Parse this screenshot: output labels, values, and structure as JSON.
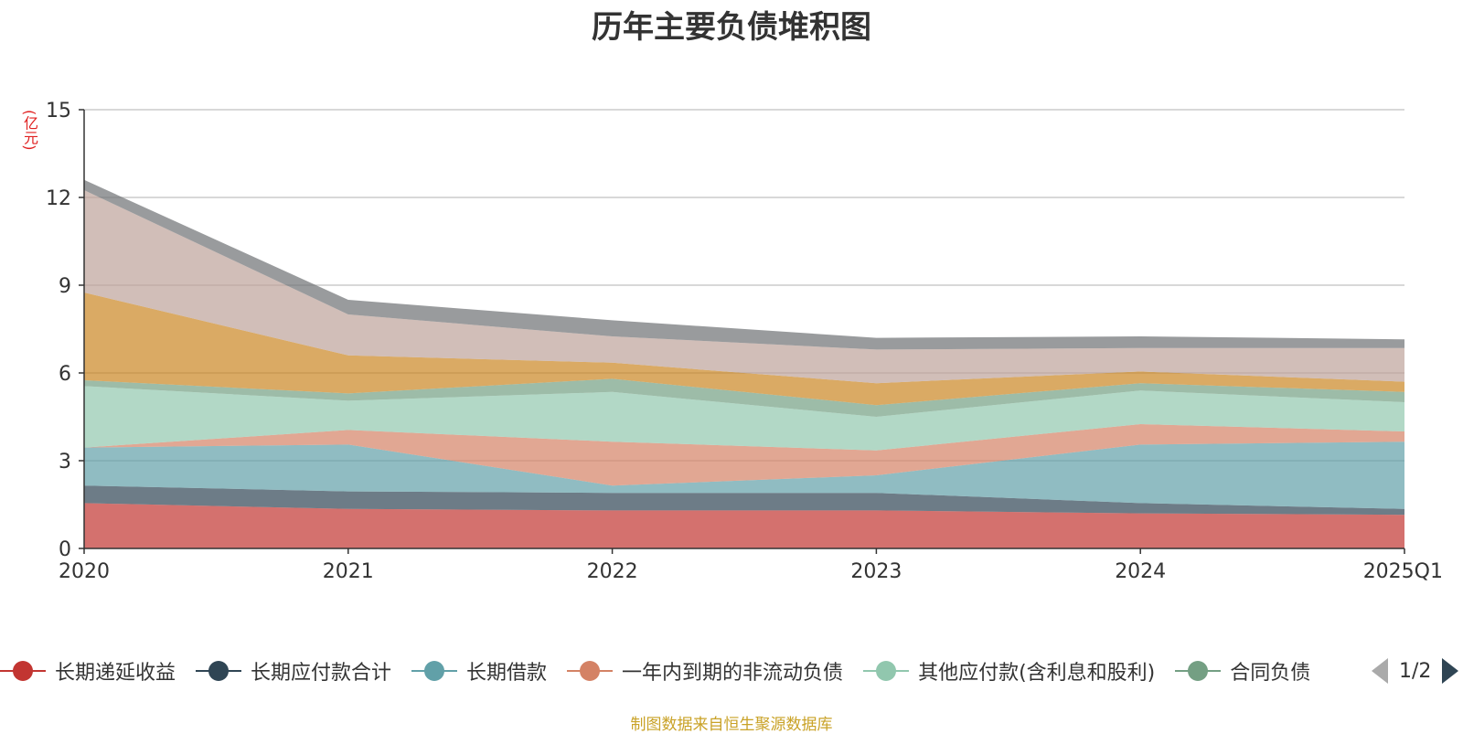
{
  "chart_data": {
    "type": "area",
    "title": "历年主要负债堆积图",
    "unit_label": "(亿元)",
    "categories": [
      "2020",
      "2021",
      "2022",
      "2023",
      "2024",
      "2025Q1"
    ],
    "ylim": [
      0,
      15
    ],
    "yticks": [
      0,
      3,
      6,
      9,
      12,
      15
    ],
    "stacked": true,
    "grid": true,
    "legend_position": "bottom",
    "legend_page": "1/2",
    "series": [
      {
        "name": "长期递延收益",
        "color": "#c23531",
        "values": [
          1.55,
          1.35,
          1.3,
          1.3,
          1.2,
          1.15
        ]
      },
      {
        "name": "长期应付款合计",
        "color": "#2f4554",
        "values": [
          0.6,
          0.6,
          0.6,
          0.6,
          0.35,
          0.2
        ]
      },
      {
        "name": "长期借款",
        "color": "#61a0a8",
        "values": [
          1.3,
          1.6,
          0.25,
          0.6,
          2.0,
          2.3
        ]
      },
      {
        "name": "一年内到期的非流动负债",
        "color": "#d48265",
        "values": [
          0.0,
          0.5,
          1.5,
          0.85,
          0.7,
          0.35
        ]
      },
      {
        "name": "其他应付款(含利息和股利)",
        "color": "#91c7ae",
        "values": [
          2.1,
          1.0,
          1.7,
          1.15,
          1.15,
          1.0
        ]
      },
      {
        "name": "合同负债",
        "color": "#749f83",
        "values": [
          0.2,
          0.25,
          0.45,
          0.4,
          0.25,
          0.35
        ]
      },
      {
        "name": "",
        "color": "#ca8622",
        "values": [
          3.0,
          1.3,
          0.55,
          0.75,
          0.4,
          0.35
        ]
      },
      {
        "name": "",
        "color": "#bda29a",
        "values": [
          3.5,
          1.4,
          0.9,
          1.15,
          0.8,
          1.15
        ]
      },
      {
        "name": "",
        "color": "#6e7074",
        "values": [
          0.35,
          0.5,
          0.55,
          0.4,
          0.4,
          0.3
        ]
      }
    ],
    "source": "制图数据来自恒生聚源数据库"
  }
}
